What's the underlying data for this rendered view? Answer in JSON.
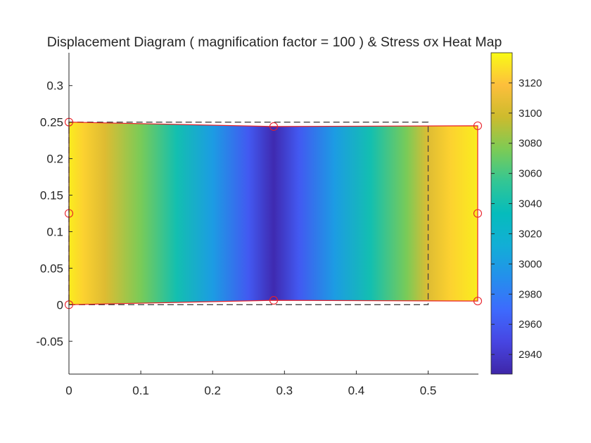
{
  "chart_data": {
    "type": "heatmap",
    "title": "Displacement Diagram ( magnification factor = 100 ) & Stress σx Heat Map",
    "xlabel": "",
    "ylabel": "",
    "xlim": [
      0,
      0.57
    ],
    "ylim": [
      -0.095,
      0.345
    ],
    "x_ticks": [
      0,
      0.1,
      0.2,
      0.3,
      0.4,
      0.5
    ],
    "x_tick_labels": [
      "0",
      "0.1",
      "0.2",
      "0.3",
      "0.4",
      "0.5"
    ],
    "y_ticks": [
      -0.05,
      0,
      0.05,
      0.1,
      0.15,
      0.2,
      0.25,
      0.3
    ],
    "y_tick_labels": [
      "-0.05",
      "0",
      "0.05",
      "0.1",
      "0.15",
      "0.2",
      "0.25",
      "0.3"
    ],
    "grid": false,
    "colormap": "parula",
    "colorbar": {
      "min": 2927,
      "max": 3140,
      "ticks": [
        2940,
        2960,
        2980,
        3000,
        3020,
        3040,
        3060,
        3080,
        3100,
        3120
      ],
      "tick_labels": [
        "2940",
        "2960",
        "2980",
        "3000",
        "3020",
        "3040",
        "3060",
        "3080",
        "3100",
        "3120"
      ]
    },
    "undeformed_outline": {
      "style": "dashed",
      "color": "#444444",
      "x": [
        0,
        0.5,
        0.5,
        0
      ],
      "y": [
        0,
        0,
        0.25,
        0.25
      ]
    },
    "deformed_nodes": [
      {
        "x": 0.0,
        "y": 0.0
      },
      {
        "x": 0.285,
        "y": 0.006
      },
      {
        "x": 0.569,
        "y": 0.005
      },
      {
        "x": 0.569,
        "y": 0.125
      },
      {
        "x": 0.569,
        "y": 0.245
      },
      {
        "x": 0.285,
        "y": 0.244
      },
      {
        "x": 0.0,
        "y": 0.25
      },
      {
        "x": 0.0,
        "y": 0.125
      }
    ],
    "deformed_outline_color": "#e8202a",
    "node_marker_color": "#e8202a",
    "stress_profile": {
      "x": [
        0.0,
        0.02,
        0.05,
        0.1,
        0.15,
        0.2,
        0.25,
        0.285,
        0.32,
        0.37,
        0.42,
        0.47,
        0.5,
        0.53,
        0.569
      ],
      "sigma_x": [
        3135,
        3125,
        3105,
        3075,
        3040,
        3000,
        2960,
        2930,
        2960,
        3000,
        3040,
        3075,
        3105,
        3125,
        3135
      ]
    }
  }
}
